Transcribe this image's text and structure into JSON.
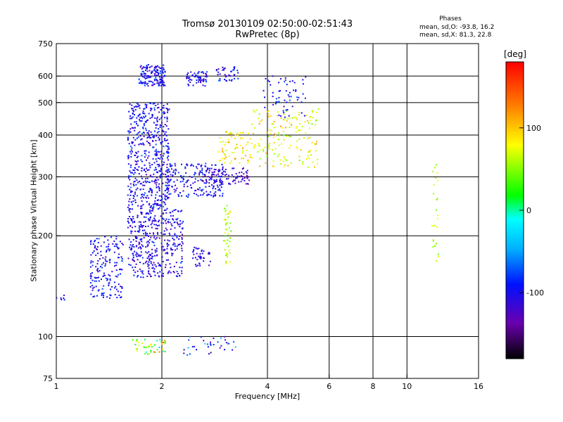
{
  "chart_data": {
    "type": "scatter",
    "title": "Tromsø 20130109 02:50:00-02:51:43",
    "subtitle": "RwPretec (8p)",
    "xlabel": "Frequency [MHz]",
    "ylabel": "Stationary phase Virtual Height [km]",
    "x_scale": "log",
    "y_scale": "log",
    "xlim": [
      1,
      16
    ],
    "ylim": [
      75,
      750
    ],
    "x_ticks": [
      {
        "value": 1,
        "label": "1"
      },
      {
        "value": 2,
        "label": "2"
      },
      {
        "value": 4,
        "label": "4"
      },
      {
        "value": 6,
        "label": "6"
      },
      {
        "value": 8,
        "label": "8"
      },
      {
        "value": 10,
        "label": "10"
      },
      {
        "value": 16,
        "label": "16"
      }
    ],
    "y_ticks": [
      {
        "value": 75,
        "label": "75"
      },
      {
        "value": 100,
        "label": "100"
      },
      {
        "value": 200,
        "label": "200"
      },
      {
        "value": 300,
        "label": "300"
      },
      {
        "value": 400,
        "label": "400"
      },
      {
        "value": 500,
        "label": "500"
      },
      {
        "value": 600,
        "label": "600"
      },
      {
        "value": 750,
        "label": "750"
      }
    ],
    "x_gridlines": [
      2,
      4,
      6,
      8,
      10
    ],
    "y_gridlines": [
      100,
      200,
      300,
      400,
      500,
      600
    ],
    "grid": true,
    "stats": {
      "heading": "Phases",
      "line_o": "mean, sd,O: -93.8, 16.2",
      "line_x": "mean, sd,X: 81.3, 22.8"
    },
    "colorbar": {
      "label": "[deg]",
      "min": -180,
      "max": 180,
      "ticks": [
        {
          "value": 100,
          "label": "100"
        },
        {
          "value": 0,
          "label": "0"
        },
        {
          "value": -100,
          "label": "-100"
        }
      ]
    },
    "clusters": [
      {
        "f": [
          1.72,
          2.05
        ],
        "h": [
          560,
          650
        ],
        "n": 140,
        "phase": -100,
        "sd": 15
      },
      {
        "f": [
          2.35,
          2.7
        ],
        "h": [
          560,
          620
        ],
        "n": 60,
        "phase": -100,
        "sd": 15
      },
      {
        "f": [
          2.85,
          3.3
        ],
        "h": [
          580,
          640
        ],
        "n": 40,
        "phase": -100,
        "sd": 15
      },
      {
        "f": [
          1.6,
          2.1
        ],
        "h": [
          240,
          500
        ],
        "n": 520,
        "phase": -100,
        "sd": 16
      },
      {
        "f": [
          2.05,
          3.0
        ],
        "h": [
          260,
          330
        ],
        "n": 200,
        "phase": -100,
        "sd": 16
      },
      {
        "f": [
          2.6,
          3.6
        ],
        "h": [
          285,
          320
        ],
        "n": 90,
        "phase": -120,
        "sd": 15
      },
      {
        "f": [
          1.6,
          2.3
        ],
        "h": [
          150,
          240
        ],
        "n": 400,
        "phase": -105,
        "sd": 15
      },
      {
        "f": [
          1.25,
          1.55
        ],
        "h": [
          130,
          200
        ],
        "n": 170,
        "phase": -100,
        "sd": 15
      },
      {
        "f": [
          2.45,
          2.75
        ],
        "h": [
          160,
          185
        ],
        "n": 40,
        "phase": -110,
        "sd": 15
      },
      {
        "f": [
          2.9,
          3.6
        ],
        "h": [
          330,
          410
        ],
        "n": 70,
        "phase": 90,
        "sd": 18
      },
      {
        "f": [
          3.0,
          3.15
        ],
        "h": [
          165,
          250
        ],
        "n": 45,
        "phase": 60,
        "sd": 15
      },
      {
        "f": [
          3.6,
          5.6
        ],
        "h": [
          320,
          480
        ],
        "n": 160,
        "phase": 80,
        "sd": 22
      },
      {
        "f": [
          3.9,
          5.2
        ],
        "h": [
          450,
          600
        ],
        "n": 60,
        "phase": -95,
        "sd": 18
      },
      {
        "f": [
          1.65,
          2.05
        ],
        "h": [
          88,
          98
        ],
        "n": 45,
        "phase": 60,
        "sd": 45
      },
      {
        "f": [
          2.3,
          3.3
        ],
        "h": [
          88,
          100
        ],
        "n": 35,
        "phase": -90,
        "sd": 25
      },
      {
        "f": [
          11.8,
          12.3
        ],
        "h": [
          160,
          330
        ],
        "n": 25,
        "phase": 60,
        "sd": 15
      },
      {
        "f": [
          1.0,
          1.06
        ],
        "h": [
          128,
          134
        ],
        "n": 6,
        "phase": -100,
        "sd": 10
      }
    ]
  }
}
